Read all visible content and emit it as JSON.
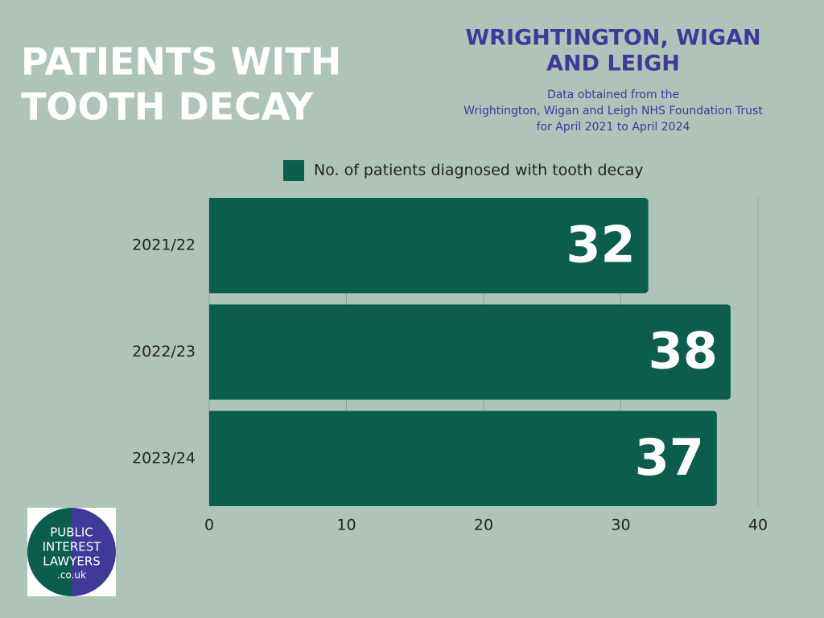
{
  "chart_data": {
    "type": "bar",
    "title": [
      "PATIENTS WITH",
      "TOOTH DECAY"
    ],
    "region": [
      "WRIGHTINGTON, WIGAN",
      "AND LEIGH"
    ],
    "subtitle": [
      "Data obtained from the",
      "Wrightington, Wigan and Leigh NHS Foundation Trust",
      "for April 2021 to April 2024"
    ],
    "categories": [
      "2021/22",
      "2022/23",
      "2023/24"
    ],
    "series": [
      {
        "name": "No. of patients diagnosed with tooth decay",
        "color": "#0b5e4c",
        "values": [
          32,
          38,
          37
        ]
      }
    ],
    "xlim": [
      0,
      40
    ],
    "xticks": [
      0,
      10,
      20,
      30,
      40
    ],
    "grid": true,
    "orientation": "horizontal"
  },
  "logo": {
    "lines": [
      "PUBLIC",
      "INTEREST",
      "LAWYERS",
      ".co.uk"
    ]
  }
}
